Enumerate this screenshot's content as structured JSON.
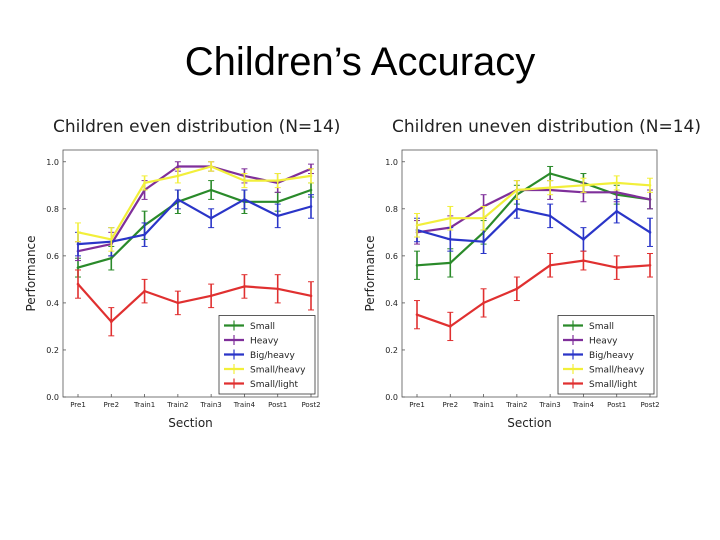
{
  "slide": {
    "title": "Children’s Accuracy"
  },
  "chart_data": [
    {
      "type": "line",
      "title": "Children even distribution (N=14)",
      "xlabel": "Section",
      "ylabel": "Performance",
      "ylim": [
        0.0,
        1.05
      ],
      "yticks": [
        "0.0",
        "0.2",
        "0.4",
        "0.6",
        "0.8",
        "1.0"
      ],
      "categories": [
        "Pre1",
        "Pre2",
        "Train1",
        "Train2",
        "Train3",
        "Train4",
        "Post1",
        "Post2"
      ],
      "legend": "lower-right",
      "series": [
        {
          "name": "Small",
          "color": "#2a8a2a",
          "values": [
            0.55,
            0.59,
            0.73,
            0.83,
            0.88,
            0.83,
            0.83,
            0.88
          ],
          "errors": [
            0.04,
            0.05,
            0.06,
            0.05,
            0.04,
            0.05,
            0.04,
            0.03
          ]
        },
        {
          "name": "Heavy",
          "color": "#7f2f9a",
          "values": [
            0.62,
            0.65,
            0.88,
            0.98,
            0.98,
            0.94,
            0.91,
            0.97
          ],
          "errors": [
            0.04,
            0.05,
            0.04,
            0.02,
            0.02,
            0.03,
            0.04,
            0.02
          ]
        },
        {
          "name": "Big/heavy",
          "color": "#2a35c8",
          "values": [
            0.65,
            0.66,
            0.69,
            0.84,
            0.76,
            0.84,
            0.77,
            0.81
          ],
          "errors": [
            0.05,
            0.06,
            0.05,
            0.04,
            0.04,
            0.04,
            0.05,
            0.05
          ]
        },
        {
          "name": "Small/heavy",
          "color": "#f2ef3a",
          "values": [
            0.7,
            0.67,
            0.91,
            0.94,
            0.98,
            0.92,
            0.92,
            0.94
          ],
          "errors": [
            0.04,
            0.05,
            0.03,
            0.03,
            0.02,
            0.03,
            0.03,
            0.03
          ]
        },
        {
          "name": "Small/light",
          "color": "#e03030",
          "values": [
            0.48,
            0.32,
            0.45,
            0.4,
            0.43,
            0.47,
            0.46,
            0.43
          ],
          "errors": [
            0.06,
            0.06,
            0.05,
            0.05,
            0.05,
            0.05,
            0.06,
            0.06
          ]
        }
      ]
    },
    {
      "type": "line",
      "title": "Children uneven distribution (N=14)",
      "xlabel": "Section",
      "ylabel": "Performance",
      "ylim": [
        0.0,
        1.05
      ],
      "yticks": [
        "0.0",
        "0.2",
        "0.4",
        "0.6",
        "0.8",
        "1.0"
      ],
      "categories": [
        "Pre1",
        "Pre2",
        "Train1",
        "Train2",
        "Train3",
        "Train4",
        "Post1",
        "Post2"
      ],
      "legend": "lower-right",
      "series": [
        {
          "name": "Small",
          "color": "#2a8a2a",
          "values": [
            0.56,
            0.57,
            0.7,
            0.86,
            0.95,
            0.91,
            0.86,
            0.84
          ],
          "errors": [
            0.06,
            0.06,
            0.05,
            0.04,
            0.03,
            0.04,
            0.04,
            0.04
          ]
        },
        {
          "name": "Heavy",
          "color": "#7f2f9a",
          "values": [
            0.7,
            0.72,
            0.81,
            0.88,
            0.88,
            0.87,
            0.87,
            0.84
          ],
          "errors": [
            0.05,
            0.05,
            0.05,
            0.04,
            0.04,
            0.04,
            0.04,
            0.04
          ]
        },
        {
          "name": "Big/heavy",
          "color": "#2a35c8",
          "values": [
            0.71,
            0.67,
            0.66,
            0.8,
            0.77,
            0.67,
            0.79,
            0.7
          ],
          "errors": [
            0.05,
            0.05,
            0.05,
            0.04,
            0.05,
            0.05,
            0.05,
            0.06
          ]
        },
        {
          "name": "Small/heavy",
          "color": "#f2ef3a",
          "values": [
            0.73,
            0.76,
            0.76,
            0.88,
            0.89,
            0.9,
            0.91,
            0.9
          ],
          "errors": [
            0.05,
            0.05,
            0.05,
            0.04,
            0.03,
            0.03,
            0.03,
            0.03
          ]
        },
        {
          "name": "Small/light",
          "color": "#e03030",
          "values": [
            0.35,
            0.3,
            0.4,
            0.46,
            0.56,
            0.58,
            0.55,
            0.56
          ],
          "errors": [
            0.06,
            0.06,
            0.06,
            0.05,
            0.05,
            0.04,
            0.05,
            0.05
          ]
        }
      ]
    }
  ]
}
